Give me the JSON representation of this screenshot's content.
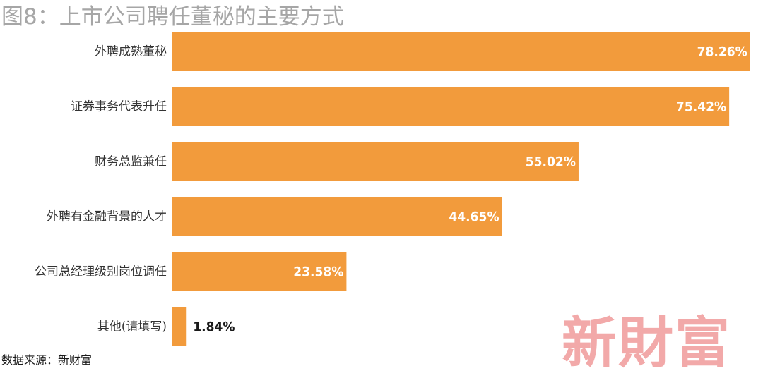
{
  "chart_data": {
    "type": "bar",
    "orientation": "horizontal",
    "title": "图8：上市公司聘任董秘的主要方式",
    "categories": [
      "外聘成熟董秘",
      "证券事务代表升任",
      "财务总监兼任",
      "外聘有金融背景的人才",
      "公司总经理级别岗位调任",
      "其他(请填写)"
    ],
    "values": [
      78.26,
      75.42,
      55.02,
      44.65,
      23.58,
      1.84
    ],
    "value_labels": [
      "78.26%",
      "75.42%",
      "55.02%",
      "44.65%",
      "23.58%",
      "1.84%"
    ],
    "xlim": [
      0,
      80
    ],
    "grid": false,
    "legend": "none",
    "bar_color": "#f29b3c"
  },
  "source": "数据来源：新财富",
  "watermark": "新財富",
  "colors": {
    "bar": "#f29b3c",
    "title": "#a6a6a6",
    "label_inside": "#ffffff",
    "label_outside": "#1a1a1a",
    "watermark": "#f2a9a9"
  }
}
